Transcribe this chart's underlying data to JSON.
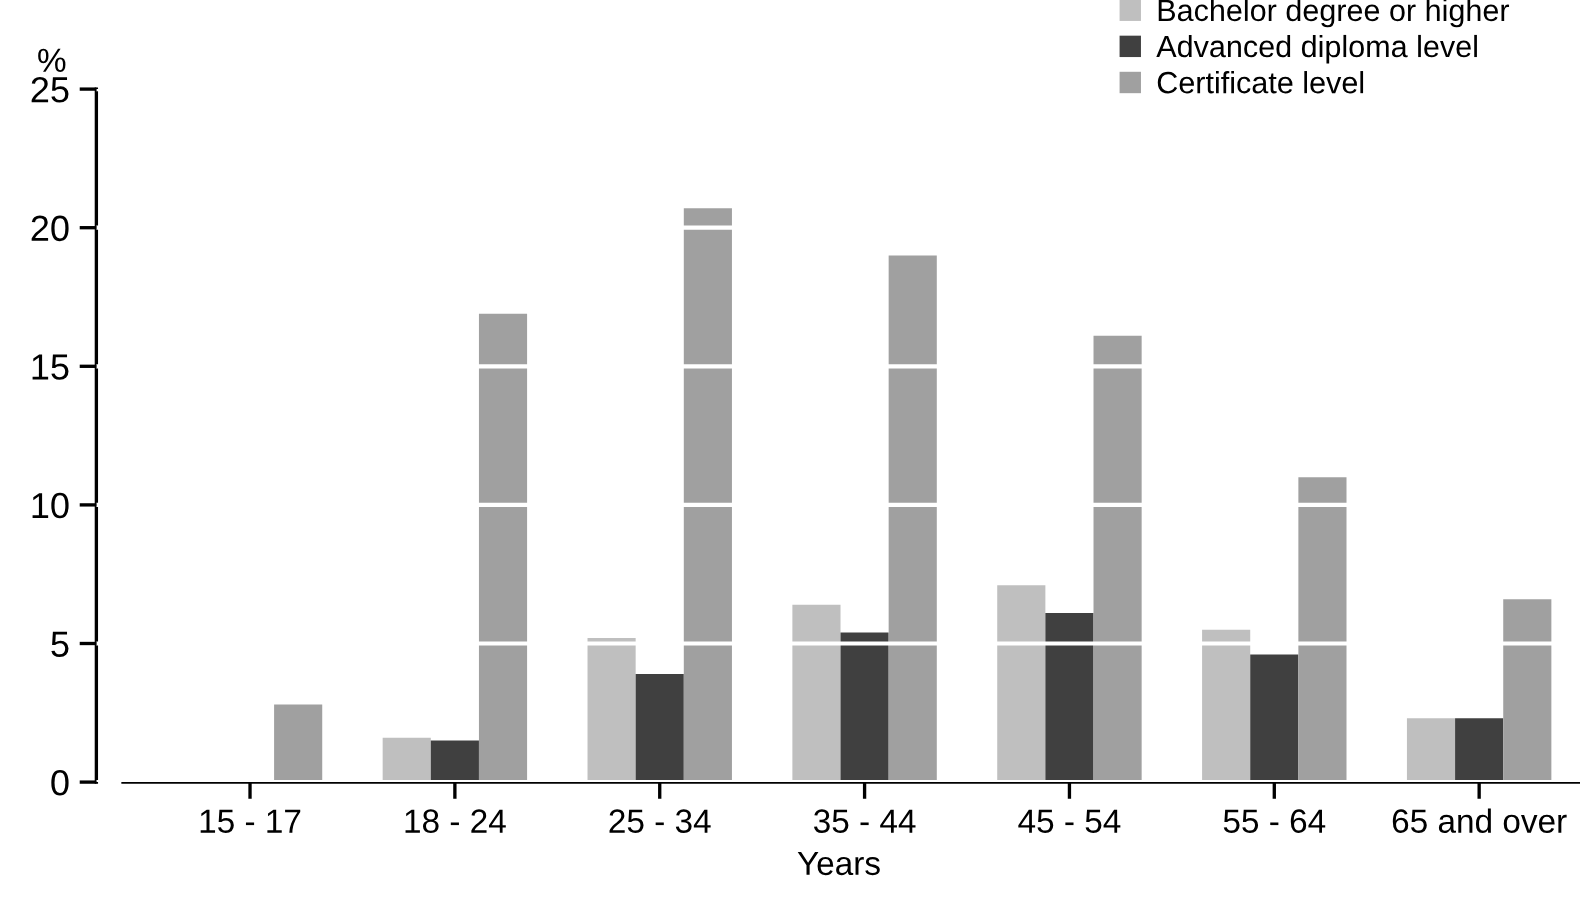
{
  "chart_data": {
    "type": "bar",
    "categories": [
      "15 - 17",
      "18 - 24",
      "25 - 34",
      "35 - 44",
      "45 - 54",
      "55 - 64",
      "65 and over"
    ],
    "series": [
      {
        "name": "Bachelor degree or higher",
        "color": "#bfbfbf",
        "values": [
          0,
          1.6,
          5.2,
          6.4,
          7.1,
          5.5,
          2.3
        ]
      },
      {
        "name": "Advanced diploma level",
        "color": "#404040",
        "values": [
          0,
          1.5,
          3.9,
          5.4,
          6.1,
          4.6,
          2.3
        ]
      },
      {
        "name": "Certificate level",
        "color": "#a0a0a0",
        "values": [
          2.8,
          16.9,
          20.7,
          19.0,
          16.1,
          11.0,
          6.6
        ]
      }
    ],
    "xlabel": "Years",
    "ylabel": "%",
    "ylim": [
      0,
      25
    ],
    "yticks": [
      0,
      5,
      10,
      15,
      20,
      25
    ],
    "grid": "y",
    "legend": "top right"
  }
}
